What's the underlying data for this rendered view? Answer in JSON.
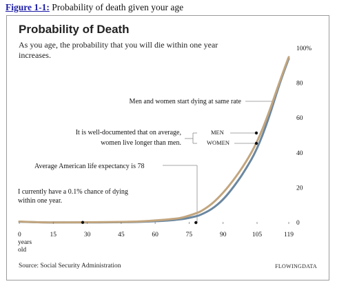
{
  "caption": {
    "number": "Figure 1-1:",
    "text": " Probability of death given your age"
  },
  "source": "Source: Social Security Administration",
  "brand": "FLOWINGDATA",
  "colors": {
    "men": "#c2a57e",
    "women": "#6b87a0",
    "annotation_line": "#8a8a8a",
    "marker": "#111111"
  },
  "chart_data": {
    "type": "line",
    "title": "Probability of Death",
    "subtitle": "As you age, the probability that you will die within one year increases.",
    "xlabel": "",
    "ylabel": "",
    "xlim": [
      0,
      119
    ],
    "ylim": [
      0,
      100
    ],
    "x_ticks": [
      "0",
      "15",
      "30",
      "45",
      "60",
      "75",
      "90",
      "105",
      "119"
    ],
    "x_tick_values": [
      0,
      15,
      30,
      45,
      60,
      75,
      90,
      105,
      119
    ],
    "x_first_tick_note": "years old",
    "y_ticks": [
      "0",
      "20",
      "40",
      "60",
      "80",
      "100%"
    ],
    "y_tick_values": [
      0,
      20,
      40,
      60,
      80,
      100
    ],
    "grid": false,
    "legend": "direct labels",
    "series": [
      {
        "name": "MEN",
        "x": [
          0,
          10,
          20,
          30,
          40,
          50,
          55,
          60,
          65,
          70,
          72,
          75,
          78,
          80,
          85,
          90,
          95,
          100,
          105,
          110,
          115,
          119
        ],
        "values": [
          0.6,
          0.1,
          0.15,
          0.2,
          0.3,
          0.5,
          0.8,
          1.2,
          1.7,
          2.4,
          2.9,
          4.0,
          5.3,
          6.3,
          10.5,
          17.0,
          25.0,
          34.5,
          46.0,
          62.0,
          81.0,
          95.0
        ]
      },
      {
        "name": "WOMEN",
        "x": [
          0,
          10,
          20,
          30,
          40,
          50,
          55,
          60,
          65,
          70,
          72,
          75,
          78,
          80,
          85,
          90,
          95,
          100,
          105,
          110,
          115,
          119
        ],
        "values": [
          0.5,
          0.05,
          0.08,
          0.1,
          0.15,
          0.3,
          0.5,
          0.8,
          1.1,
          1.7,
          2.0,
          2.7,
          3.6,
          4.4,
          7.6,
          13.0,
          21.0,
          30.5,
          42.0,
          59.0,
          80.0,
          94.0
        ]
      }
    ],
    "annotations": [
      {
        "text": "Men and women start dying at same rate",
        "x": 113,
        "y": 70
      },
      {
        "text": "It is well-documented that on average, women live longer than men.",
        "x": 105,
        "y": 52.5,
        "labels": [
          "MEN",
          "WOMEN"
        ]
      },
      {
        "text": "Average American life expectancy is 78",
        "x": 78,
        "y": 0
      },
      {
        "text": "I currently have a 0.1% chance of dying within one year.",
        "x": 28,
        "y": 0.1
      }
    ]
  },
  "labels": {
    "ann_same_rate": "Men and women start dying at same rate",
    "ann_documented_1": "It is well-documented that on average,",
    "ann_documented_2": "women live longer than men.",
    "ann_life_expectancy": "Average American life expectancy is 78",
    "ann_current_1": "I currently have a 0.1% chance of dying",
    "ann_current_2": "within one year.",
    "men": "MEN",
    "women": "WOMEN",
    "years_1": "years",
    "years_2": "old"
  }
}
